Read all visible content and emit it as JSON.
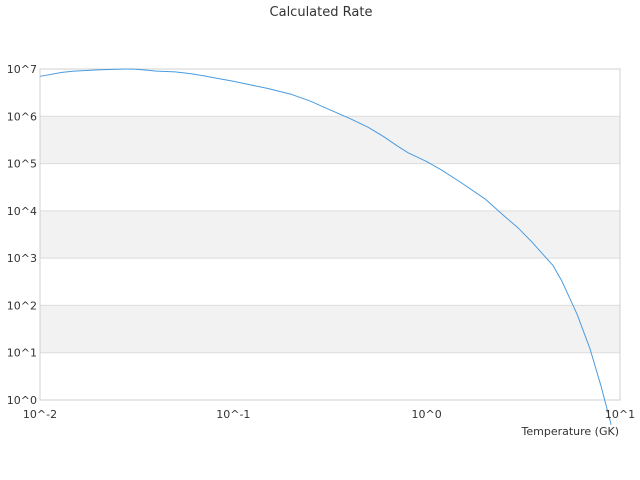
{
  "chart_data": {
    "type": "line",
    "title": "Calculated Rate",
    "xlabel": "Temperature (GK)",
    "ylabel": "",
    "x_scale": "log",
    "y_scale": "log",
    "xlim": [
      0.01,
      10
    ],
    "ylim": [
      1,
      10000000
    ],
    "x_ticks": [
      "10^-2",
      "10^-1",
      "10^0",
      "10^1"
    ],
    "y_ticks": [
      "10^0",
      "10^1",
      "10^2",
      "10^3",
      "10^4",
      "10^5",
      "10^6",
      "10^7"
    ],
    "grid": true,
    "legend": false,
    "series": [
      {
        "color": "#4a9be0",
        "x": [
          0.01,
          0.013,
          0.015,
          0.02,
          0.025,
          0.03,
          0.035,
          0.04,
          0.05,
          0.06,
          0.07,
          0.08,
          0.1,
          0.12,
          0.15,
          0.2,
          0.25,
          0.3,
          0.4,
          0.5,
          0.6,
          0.7,
          0.8,
          1.0,
          1.2,
          1.5,
          2.0,
          2.5,
          3.0,
          3.5,
          4.0,
          4.5,
          5.0,
          6.0,
          7.0,
          8.0,
          9.0
        ],
        "y": [
          7000000,
          8500000,
          9000000,
          9600000,
          9900000,
          10000000,
          9500000,
          9000000,
          8700000,
          8000000,
          7200000,
          6500000,
          5500000,
          4700000,
          3900000,
          2900000,
          2100000,
          1500000,
          900000,
          580000,
          370000,
          240000,
          170000,
          110000,
          72000,
          40000,
          18000,
          8000,
          4200,
          2200,
          1200,
          700,
          330,
          65,
          12,
          1.9,
          0.3
        ]
      }
    ]
  }
}
